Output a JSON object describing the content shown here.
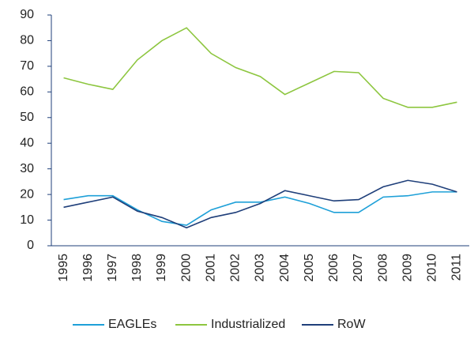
{
  "chart_data": {
    "type": "line",
    "categories": [
      "1995",
      "1996",
      "1997",
      "1998",
      "1999",
      "2000",
      "2001",
      "2002",
      "2003",
      "2004",
      "2005",
      "2006",
      "2007",
      "2008",
      "2009",
      "2010",
      "2011"
    ],
    "series": [
      {
        "name": "EAGLEs",
        "color": "#1ea0d8",
        "values": [
          18,
          19.5,
          19.5,
          14,
          9.5,
          8,
          14,
          17,
          17,
          19,
          16.5,
          13,
          13,
          19,
          19.5,
          21,
          21
        ]
      },
      {
        "name": "Industrialized",
        "color": "#8dc63f",
        "values": [
          65.5,
          63,
          61,
          72.5,
          80,
          85,
          75,
          69.5,
          66,
          59,
          63.5,
          68,
          67.5,
          57.5,
          54,
          54,
          56
        ]
      },
      {
        "name": "RoW",
        "color": "#1f3f7a",
        "values": [
          15,
          17,
          19,
          13.5,
          11,
          7,
          11,
          13,
          16.5,
          21.5,
          19.5,
          17.5,
          18,
          23,
          25.5,
          24,
          21
        ]
      }
    ],
    "ylim": [
      0,
      90
    ],
    "yticks": [
      0,
      10,
      20,
      30,
      40,
      50,
      60,
      70,
      80,
      90
    ],
    "grid": false,
    "legend": "bottom"
  }
}
